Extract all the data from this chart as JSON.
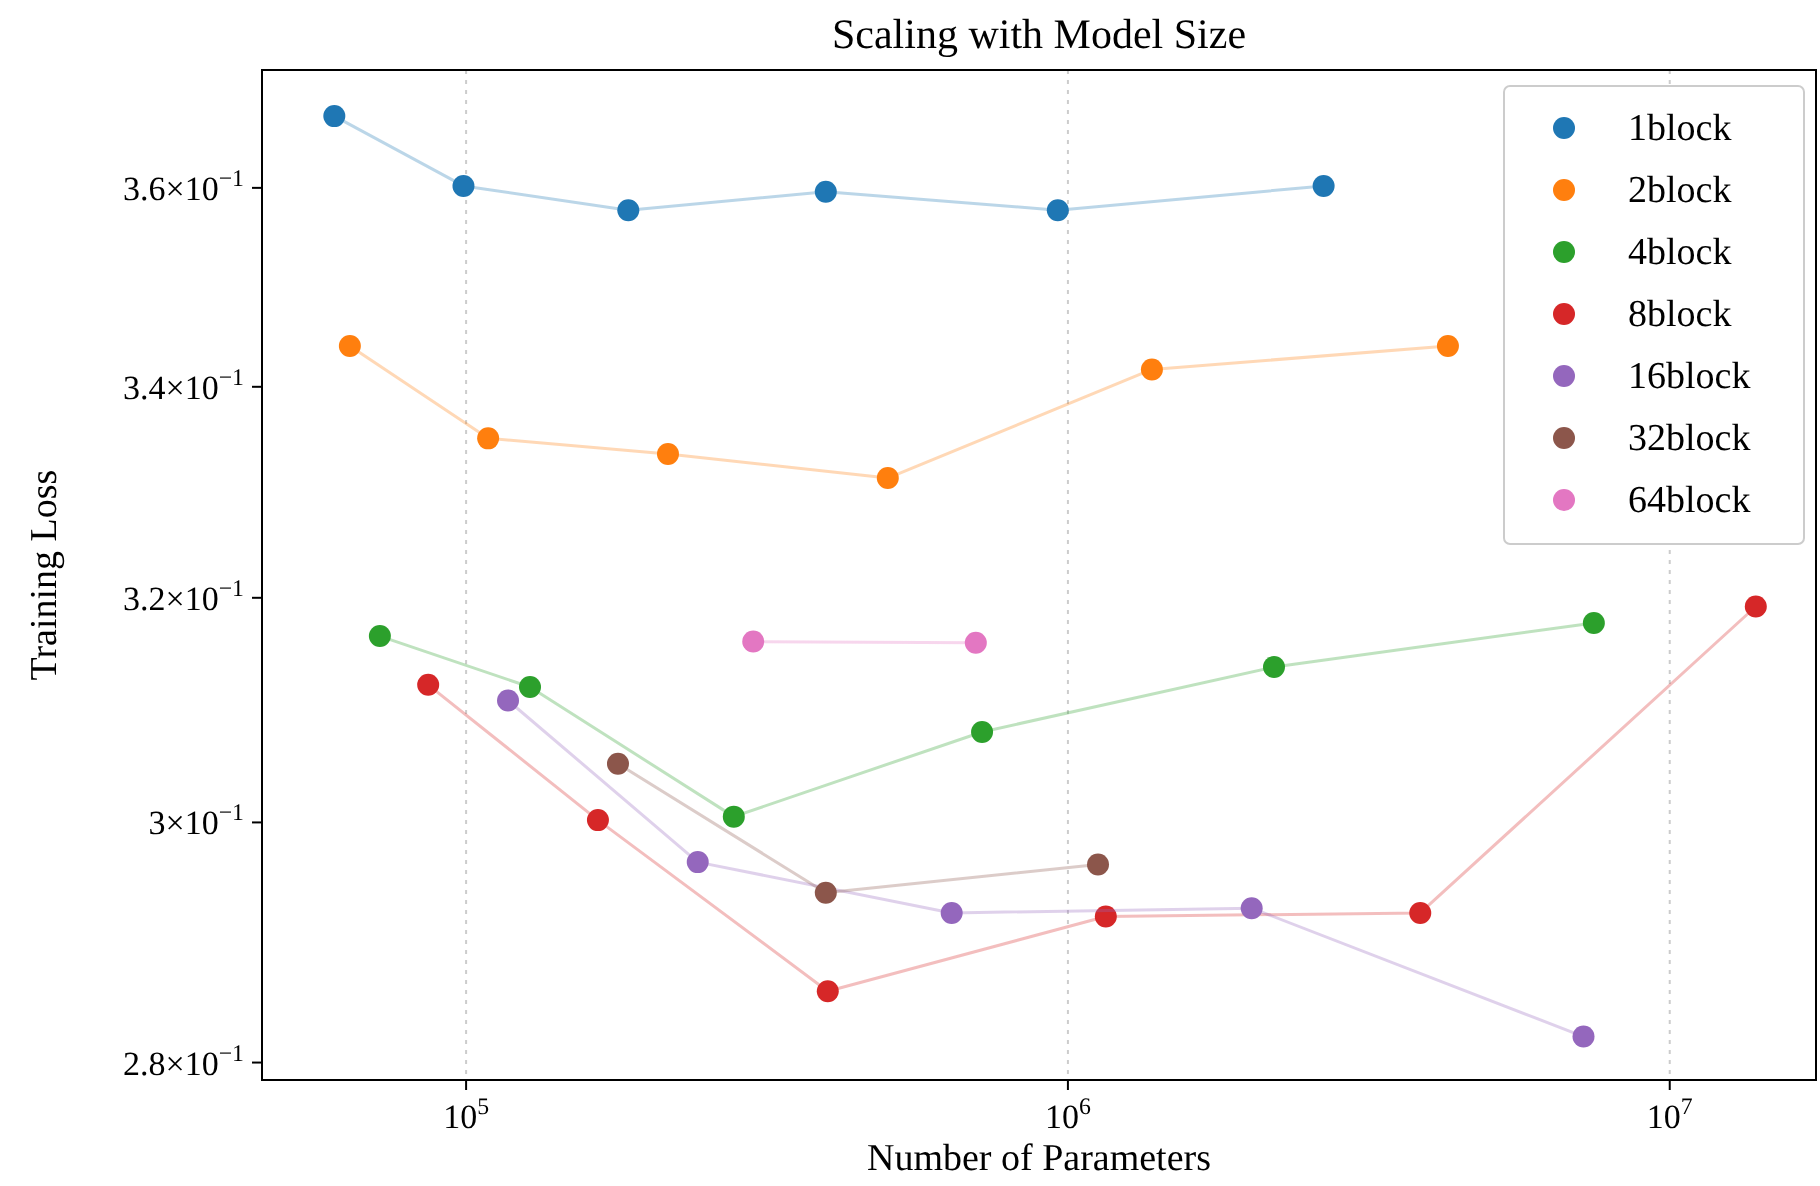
{
  "chart_data": {
    "type": "line",
    "title": "Scaling with Model Size",
    "xlabel": "Number of Parameters",
    "ylabel": "Training Loss",
    "log": "xy",
    "grid": "x",
    "legend": "top right",
    "marker": "circle",
    "line_style": "solid",
    "xlim": [
      45800,
      17500000
    ],
    "ylim": [
      0.2786,
      0.3724
    ],
    "xticks": [
      {
        "value": 100000,
        "label": "10$^{5}$"
      },
      {
        "value": 1000000,
        "label": "10$^{6}$"
      },
      {
        "value": 10000000,
        "label": "10$^{7}$"
      }
    ],
    "yticks": [
      {
        "value": 0.28,
        "label": "2.8×10$^{−1}$"
      },
      {
        "value": 0.3,
        "label": "3×10$^{−1}$"
      },
      {
        "value": 0.32,
        "label": "3.2×10$^{−1}$"
      },
      {
        "value": 0.34,
        "label": "3.4×10$^{−1}$"
      },
      {
        "value": 0.36,
        "label": "3.6×10$^{−1}$"
      }
    ],
    "series": [
      {
        "name": "1block",
        "color": "#1f77b4",
        "x": [
          60400,
          99000,
          186000,
          396000,
          962000,
          2660000
        ],
        "values": [
          0.3675,
          0.3602,
          0.3577,
          0.3596,
          0.3577,
          0.3602
        ]
      },
      {
        "name": "2block",
        "color": "#ff7f0e",
        "x": [
          64100,
          108800,
          216500,
          502000,
          1379000,
          4280000
        ],
        "values": [
          0.344,
          0.335,
          0.3335,
          0.3312,
          0.3417,
          0.344
        ]
      },
      {
        "name": "4block",
        "color": "#2ca02c",
        "x": [
          71900,
          127700,
          278500,
          720000,
          2200000,
          7480000
        ],
        "values": [
          0.3165,
          0.3119,
          0.3005,
          0.3079,
          0.3137,
          0.3177
        ]
      },
      {
        "name": "8block",
        "color": "#d62728",
        "x": [
          86500,
          165600,
          399000,
          1156000,
          3850000,
          13900000
        ],
        "values": [
          0.3121,
          0.3002,
          0.2858,
          0.292,
          0.2923,
          0.3192
        ]
      },
      {
        "name": "16block",
        "color": "#9467bd",
        "x": [
          117400,
          242600,
          641000,
          2020000,
          7190000
        ],
        "values": [
          0.3107,
          0.2966,
          0.2923,
          0.2927,
          0.2821
        ]
      },
      {
        "name": "32block",
        "color": "#8c564b",
        "x": [
          178800,
          396000,
          1122000
        ],
        "values": [
          0.3051,
          0.294,
          0.2964
        ]
      },
      {
        "name": "64block",
        "color": "#e377c2",
        "x": [
          300000,
          703000
        ],
        "values": [
          0.316,
          0.3159
        ]
      }
    ]
  }
}
